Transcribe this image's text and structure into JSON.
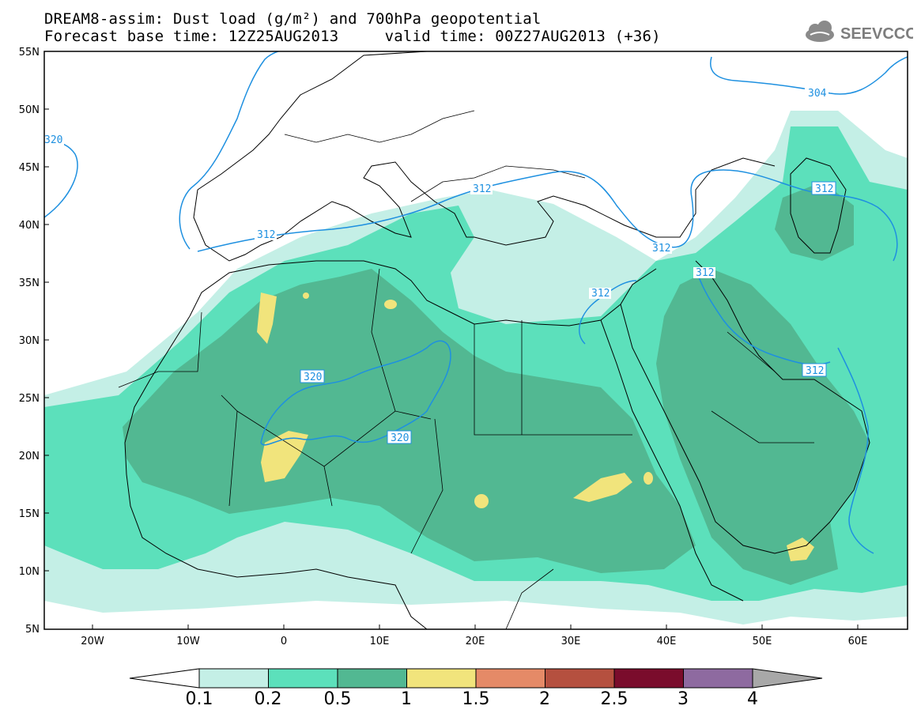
{
  "header": {
    "title_line1": "DREAM8-assim: Dust load (g/m²) and 700hPa geopotential",
    "title_line2": "Forecast base time: 12Z25AUG2013     valid time: 00Z27AUG2013 (+36)"
  },
  "logo": {
    "text": "SEEVCCC",
    "icon": "cloud-icon"
  },
  "map": {
    "lat_labels": [
      "55N",
      "50N",
      "45N",
      "40N",
      "35N",
      "30N",
      "25N",
      "20N",
      "15N",
      "10N",
      "5N"
    ],
    "lon_labels": [
      "20W",
      "10W",
      "0",
      "10E",
      "20E",
      "30E",
      "40E",
      "50E",
      "60E"
    ],
    "contour_labels": [
      "320",
      "312",
      "312",
      "312",
      "312",
      "312",
      "320",
      "312",
      "320",
      "320",
      "304",
      "312"
    ]
  },
  "legend": {
    "ticks": [
      "0.1",
      "0.2",
      "0.5",
      "1",
      "1.5",
      "2",
      "2.5",
      "3",
      "4"
    ],
    "colors": [
      "#ffffff",
      "#c4efe6",
      "#5ce0bb",
      "#52b892",
      "#f1e47c",
      "#e58a67",
      "#b5503f",
      "#7a0c2c",
      "#8e6aa0",
      "#a8a8a8"
    ]
  },
  "colors": {
    "dust_01": "#c4efe6",
    "dust_02": "#5ce0bb",
    "dust_05": "#52b892",
    "dust_1": "#f1e47c",
    "contour": "#1e90e0"
  }
}
